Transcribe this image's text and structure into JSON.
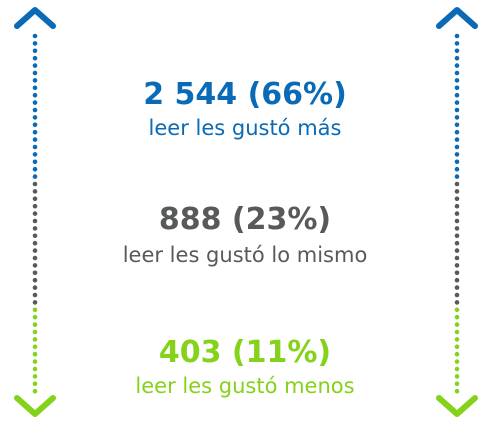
{
  "items": [
    {
      "value": "2 544 (66%)",
      "label": "leer les gustó más"
    },
    {
      "value": "888 (23%)",
      "label": "leer les gustó lo mismo"
    },
    {
      "value": "403 (11%)",
      "label": "leer les gustó menos"
    }
  ]
}
